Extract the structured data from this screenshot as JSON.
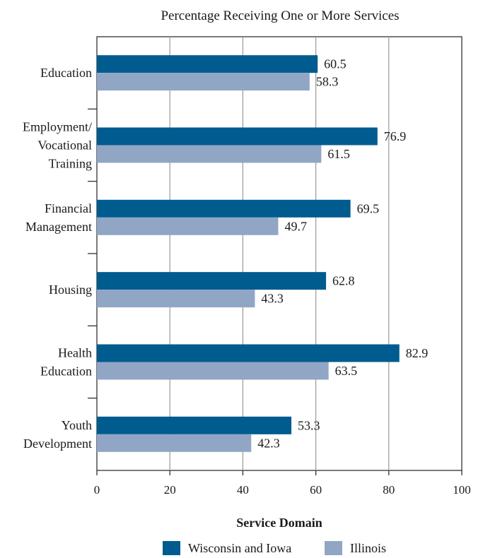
{
  "chart_data": {
    "type": "bar",
    "orientation": "horizontal",
    "title": "Percentage Receiving One or More Services",
    "xlabel": "Service Domain",
    "categories": [
      [
        "Education"
      ],
      [
        "Employment/",
        "Vocational",
        "Training"
      ],
      [
        "Financial",
        "Management"
      ],
      [
        "Housing"
      ],
      [
        "Health",
        "Education"
      ],
      [
        "Youth",
        "Development"
      ]
    ],
    "series": [
      {
        "name": "Wisconsin and Iowa",
        "color": "#005b8f",
        "values": [
          60.5,
          76.9,
          69.5,
          62.8,
          82.9,
          53.3
        ]
      },
      {
        "name": "Illinois",
        "color": "#91a6c5",
        "values": [
          58.3,
          61.5,
          49.7,
          43.3,
          63.5,
          42.3
        ]
      }
    ],
    "xlim": [
      0,
      100
    ],
    "xticks": [
      "0",
      "20",
      "40",
      "60",
      "80",
      "100"
    ],
    "grid": true,
    "legend_position": "bottom"
  }
}
